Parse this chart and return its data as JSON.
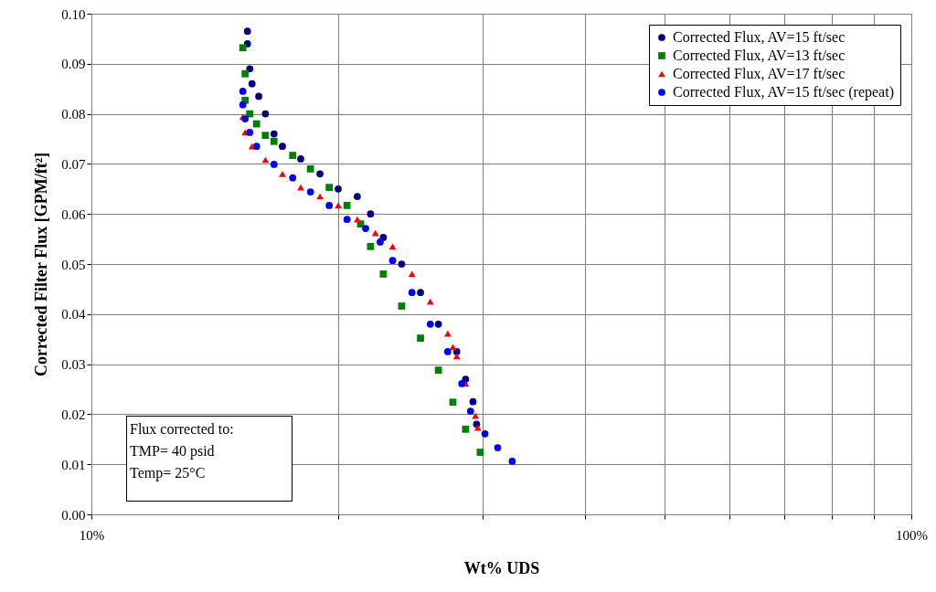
{
  "chart_data": {
    "type": "scatter",
    "xlabel": "Wt% UDS",
    "ylabel": "Corrected Filter Flux [GPM/ft²]",
    "log": "x",
    "grid": true,
    "legend": "top right",
    "xlim": [
      10,
      100
    ],
    "xticks": [
      {
        "value": 10,
        "label": "10%"
      },
      {
        "value": 20,
        "label": null
      },
      {
        "value": 30,
        "label": null
      },
      {
        "value": 40,
        "label": null
      },
      {
        "value": 50,
        "label": null
      },
      {
        "value": 60,
        "label": null
      },
      {
        "value": 70,
        "label": null
      },
      {
        "value": 80,
        "label": null
      },
      {
        "value": 90,
        "label": null
      },
      {
        "value": 100,
        "label": "100%"
      }
    ],
    "ylim": [
      0,
      0.1
    ],
    "yticks": [
      {
        "value": 0,
        "label": "0.00"
      },
      {
        "value": 0.01,
        "label": "0.01"
      },
      {
        "value": 0.02,
        "label": "0.02"
      },
      {
        "value": 0.03,
        "label": "0.03"
      },
      {
        "value": 0.04,
        "label": "0.04"
      },
      {
        "value": 0.05,
        "label": "0.05"
      },
      {
        "value": 0.06,
        "label": "0.06"
      },
      {
        "value": 0.07,
        "label": "0.07"
      },
      {
        "value": 0.08,
        "label": "0.08"
      },
      {
        "value": 0.09,
        "label": "0.09"
      },
      {
        "value": 0.1,
        "label": "0.10"
      }
    ],
    "annotations": [
      "Flux corrected to:",
      "TMP= 40 psid",
      "Temp= 25°C"
    ],
    "series": [
      {
        "name": "Corrected Flux, AV=15 ft/sec",
        "color": "#000080",
        "marker": "circle",
        "x": [
          15.5,
          15.5,
          15.6,
          15.7,
          16.0,
          16.3,
          16.7,
          17.1,
          18.0,
          19.0,
          20.0,
          21.1,
          21.9,
          22.7,
          23.9,
          25.2,
          26.5,
          27.9,
          28.6,
          29.2,
          29.5
        ],
        "values": [
          0.0965,
          0.094,
          0.089,
          0.086,
          0.0835,
          0.08,
          0.076,
          0.0735,
          0.071,
          0.068,
          0.065,
          0.0635,
          0.06,
          0.0553,
          0.05,
          0.0443,
          0.038,
          0.0325,
          0.027,
          0.0225,
          0.018
        ]
      },
      {
        "name": "Corrected Flux, AV=13 ft/sec",
        "color": "#008000",
        "marker": "square",
        "x": [
          15.3,
          15.4,
          15.4,
          15.6,
          15.9,
          16.3,
          16.7,
          17.6,
          18.5,
          19.5,
          20.5,
          21.3,
          21.9,
          22.7,
          23.9,
          25.2,
          26.5,
          27.6,
          28.6,
          29.8
        ],
        "values": [
          0.0932,
          0.088,
          0.0827,
          0.08,
          0.078,
          0.0757,
          0.0745,
          0.0717,
          0.069,
          0.0653,
          0.0617,
          0.058,
          0.0535,
          0.048,
          0.0416,
          0.0352,
          0.0288,
          0.0224,
          0.017,
          0.0124
        ]
      },
      {
        "name": "Corrected Flux, AV=17 ft/sec",
        "color": "#ff0000",
        "marker": "triangle",
        "x": [
          15.3,
          15.4,
          15.7,
          16.3,
          17.1,
          18.0,
          19.0,
          20.0,
          21.1,
          22.2,
          23.3,
          24.6,
          25.9,
          27.2,
          27.6,
          27.9,
          28.6,
          29.4,
          29.6
        ],
        "values": [
          0.0794,
          0.0763,
          0.0735,
          0.0708,
          0.068,
          0.0653,
          0.0635,
          0.0617,
          0.0589,
          0.0562,
          0.0535,
          0.048,
          0.0425,
          0.0361,
          0.0334,
          0.0316,
          0.0261,
          0.0197,
          0.0173
        ]
      },
      {
        "name": "Corrected Flux, AV=15 ft/sec (repeat)",
        "color": "#0000ff",
        "marker": "circle",
        "x": [
          15.3,
          15.3,
          15.4,
          15.6,
          15.9,
          16.7,
          17.6,
          18.5,
          19.5,
          20.5,
          21.6,
          22.5,
          23.3,
          24.6,
          25.9,
          27.2,
          28.3,
          29.0,
          30.2,
          31.3,
          32.6
        ],
        "values": [
          0.0845,
          0.0818,
          0.079,
          0.0763,
          0.0735,
          0.0699,
          0.0672,
          0.0644,
          0.0617,
          0.0589,
          0.0571,
          0.0544,
          0.0507,
          0.0443,
          0.038,
          0.0325,
          0.0261,
          0.0206,
          0.0161,
          0.0133,
          0.0106
        ]
      }
    ]
  }
}
